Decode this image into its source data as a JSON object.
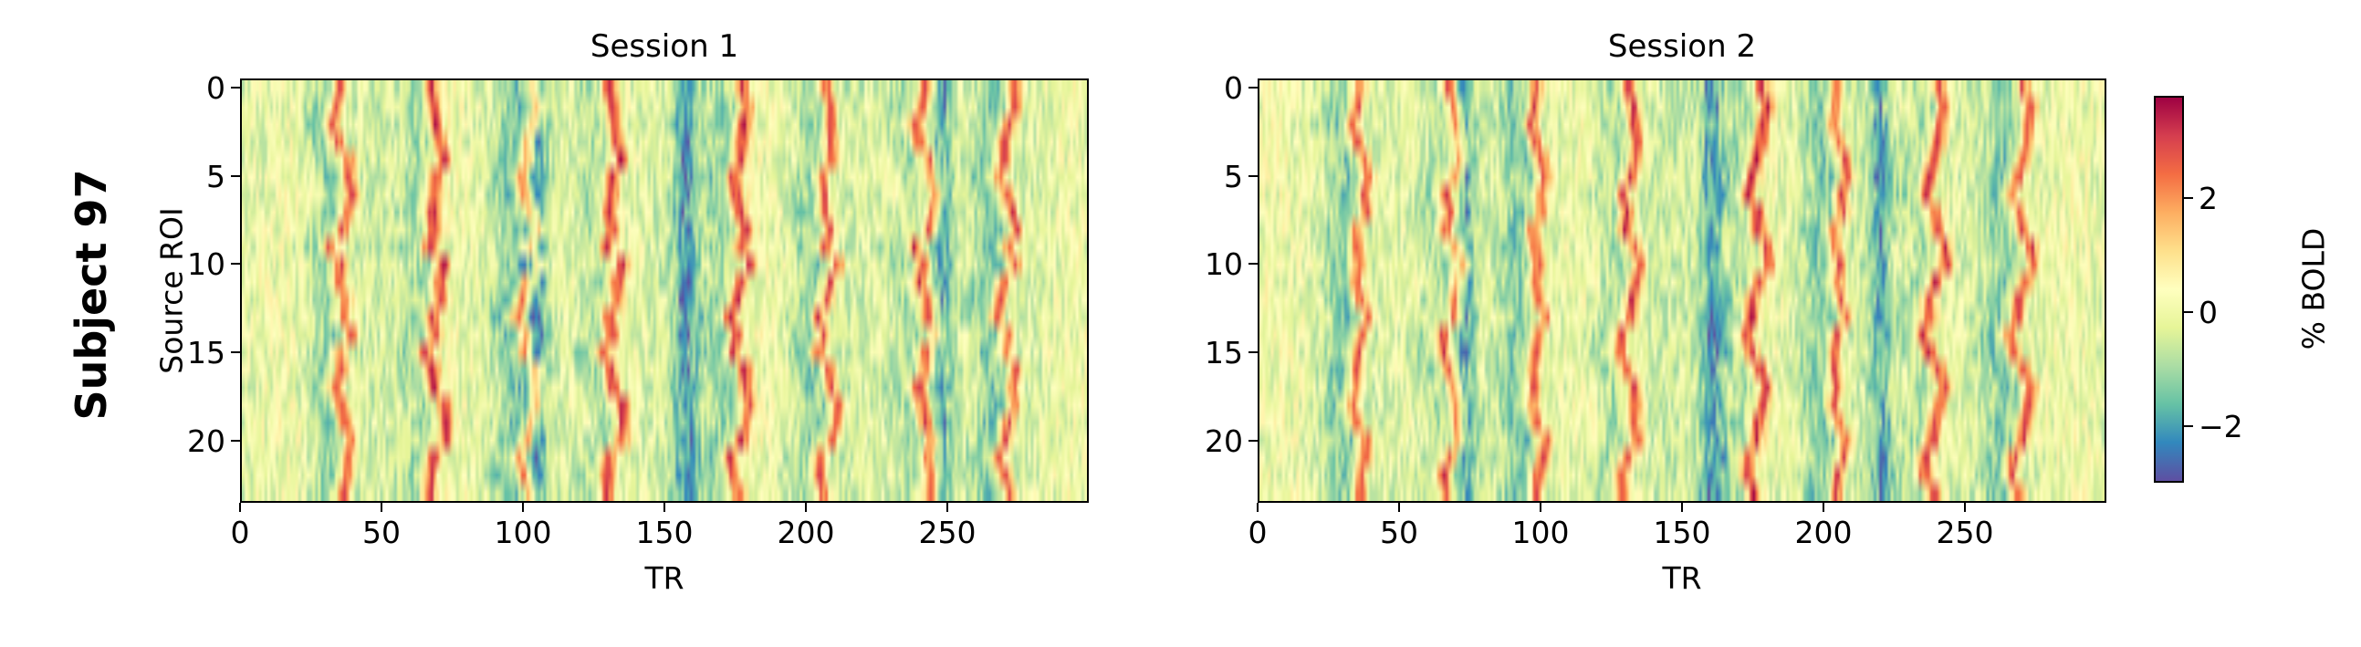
{
  "figure": {
    "row_label": "Subject 97"
  },
  "chart_data": [
    {
      "type": "heatmap",
      "title": "Session 1",
      "xlabel": "TR",
      "ylabel": "Source ROI",
      "n_rows": 24,
      "n_cols": 300,
      "xlim": [
        0,
        300
      ],
      "ylim": [
        23.5,
        -0.5
      ],
      "x_ticks": [
        0,
        50,
        100,
        150,
        200,
        250
      ],
      "y_ticks": [
        0,
        5,
        10,
        15,
        20
      ],
      "peak_TRs": [
        35,
        68,
        101,
        131,
        176,
        207,
        242,
        271
      ],
      "trough_TRs": [
        104,
        157,
        248
      ],
      "colormap": "Spectral_r"
    },
    {
      "type": "heatmap",
      "title": "Session 2",
      "xlabel": "TR",
      "ylabel": "",
      "n_rows": 24,
      "n_cols": 300,
      "xlim": [
        0,
        300
      ],
      "ylim": [
        23.5,
        -0.5
      ],
      "x_ticks": [
        0,
        50,
        100,
        150,
        200,
        250
      ],
      "y_ticks": [
        0,
        5,
        10,
        15,
        20
      ],
      "peak_TRs": [
        35,
        68,
        98,
        131,
        176,
        205,
        239,
        270
      ],
      "trough_TRs": [
        72,
        160,
        220
      ],
      "colormap": "Spectral_r"
    }
  ],
  "colorbar": {
    "label": "% BOLD",
    "range": [
      -3,
      3.8
    ],
    "ticks": [
      -2,
      0,
      2
    ],
    "tick_labels": [
      "−2",
      "0",
      "2"
    ],
    "colors": [
      "#5e4fa2",
      "#3288bd",
      "#66c2a5",
      "#abdda4",
      "#e6f598",
      "#ffffbf",
      "#fee08b",
      "#fdae61",
      "#f46d43",
      "#d53e4f",
      "#9e0142"
    ]
  }
}
